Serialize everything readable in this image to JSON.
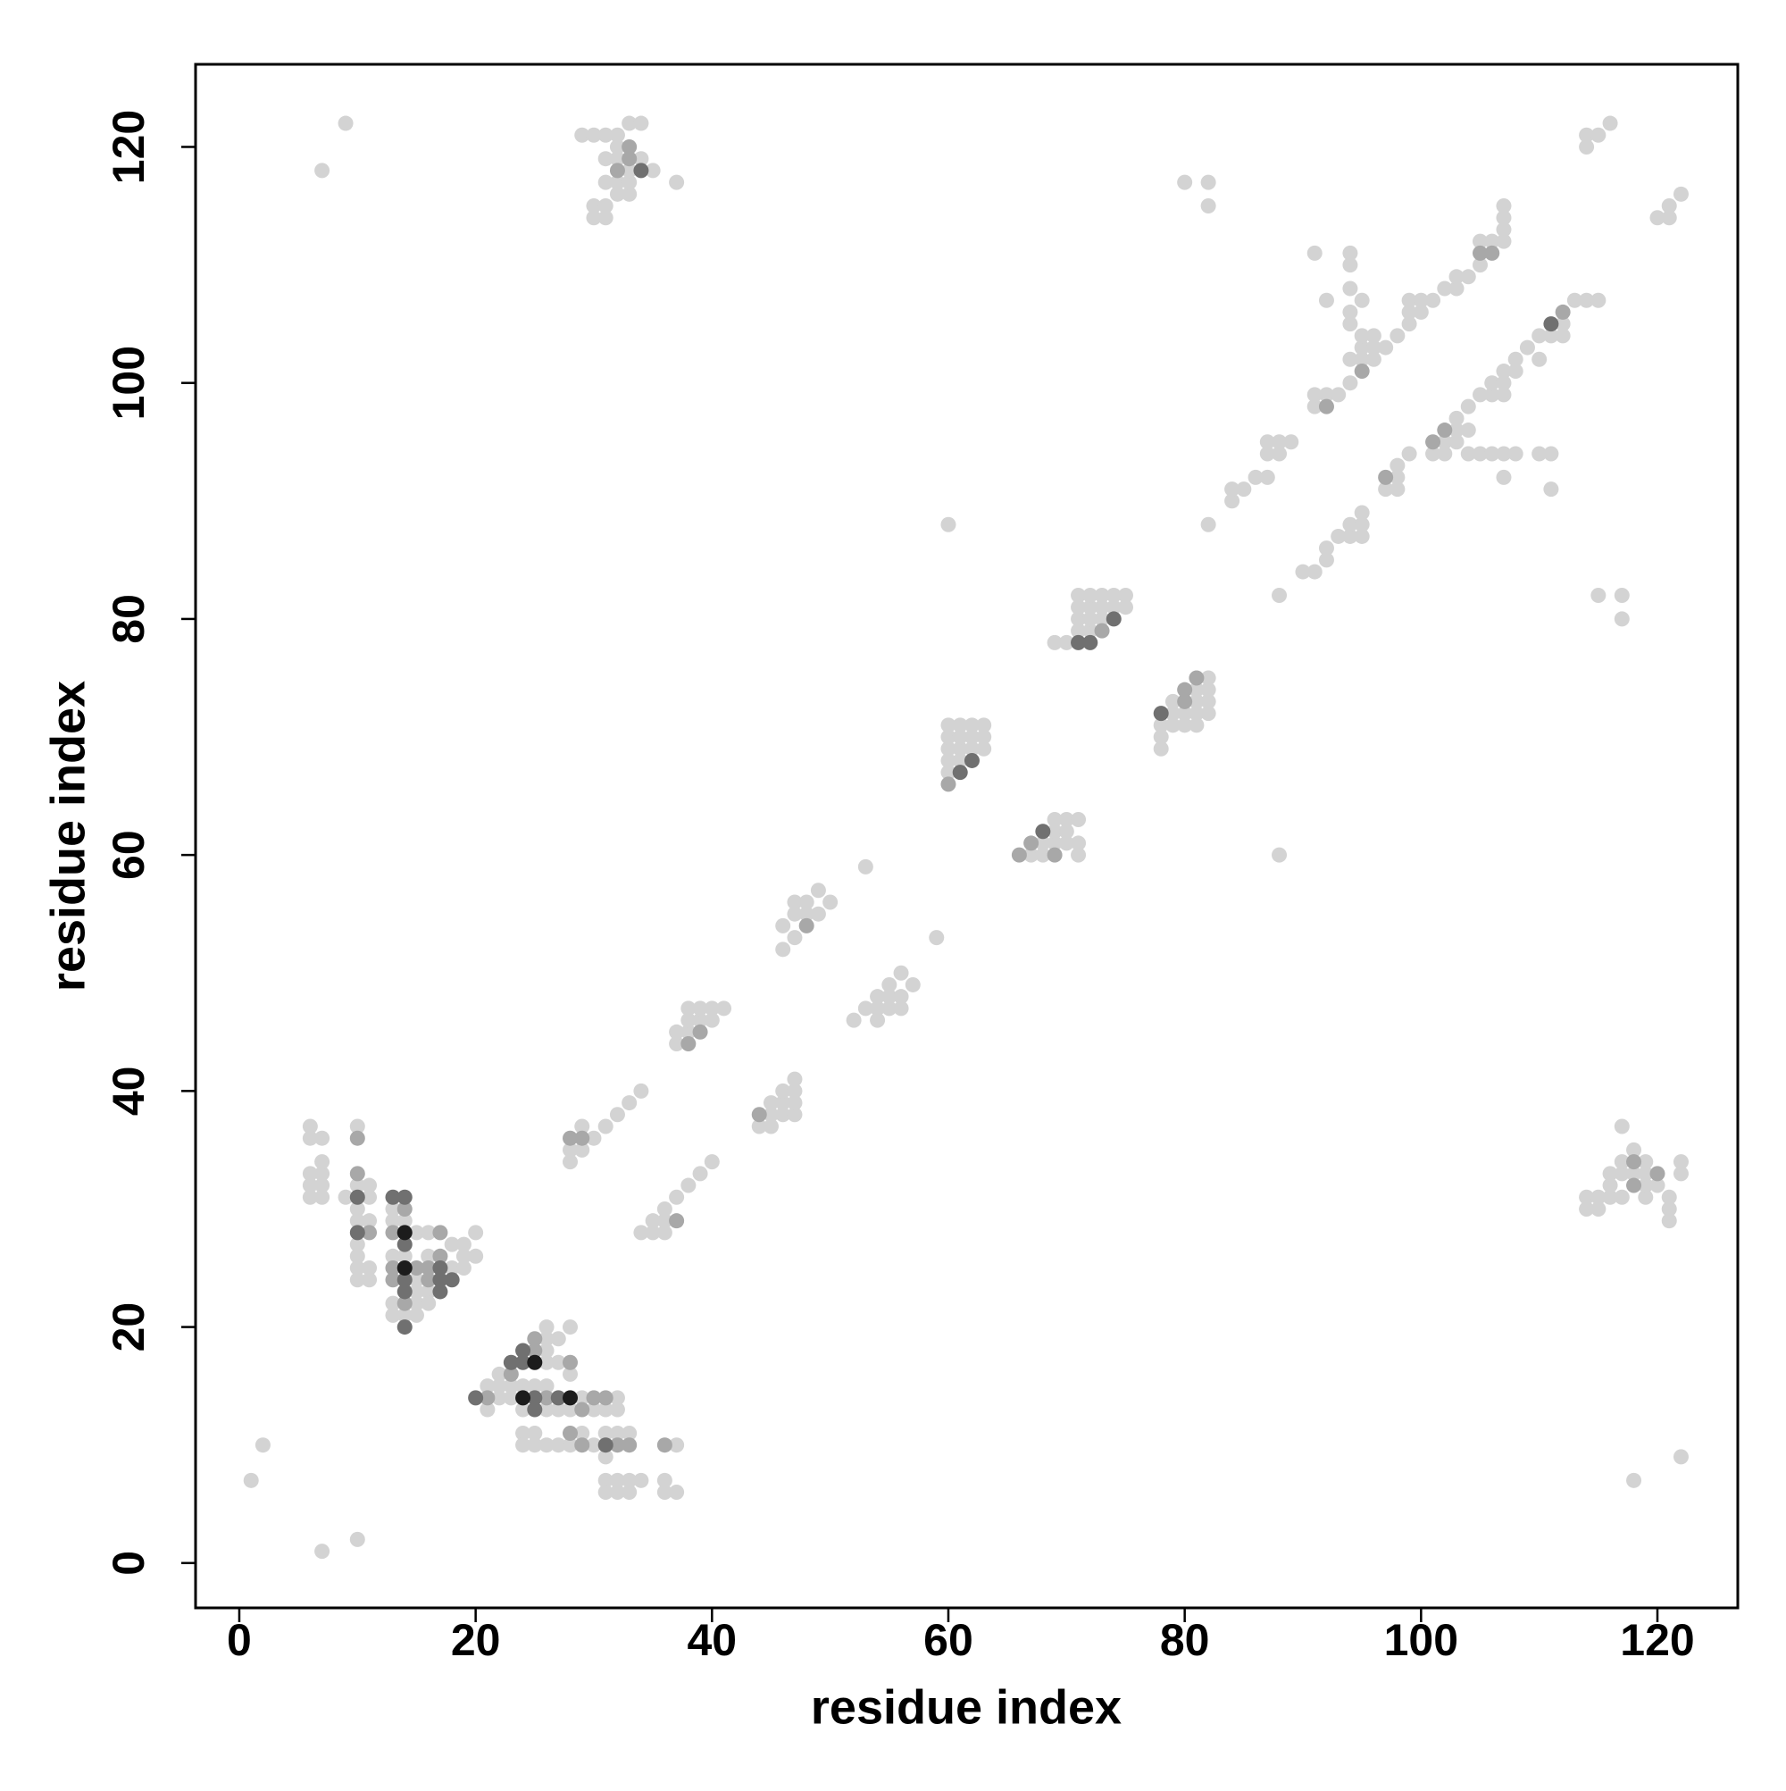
{
  "chart_data": {
    "type": "scatter",
    "xlabel": "residue index",
    "ylabel": "residue index",
    "xlim": [
      -3.7,
      126.8
    ],
    "ylim": [
      -3.8,
      127
    ],
    "xticks": [
      0,
      20,
      40,
      60,
      80,
      100,
      120
    ],
    "yticks": [
      0,
      20,
      40,
      60,
      80,
      100,
      120
    ],
    "series": [
      {
        "color": "#d3d3d3",
        "x": [
          1,
          2,
          7,
          10,
          7,
          9,
          60,
          88,
          82,
          80,
          82,
          82,
          88,
          115,
          117,
          117,
          118,
          122,
          120,
          121,
          121,
          122,
          114,
          114,
          115,
          116,
          6,
          6,
          7,
          6,
          7,
          6,
          7,
          6,
          7,
          7,
          9,
          10,
          10,
          11,
          11,
          10,
          10,
          11,
          10,
          10,
          10,
          11,
          10,
          11,
          13,
          13,
          14,
          15,
          16,
          13,
          14,
          16,
          18,
          19,
          20,
          18,
          19,
          20,
          19,
          15,
          15,
          16,
          13,
          15,
          16,
          14,
          15,
          13,
          21,
          21,
          22,
          22,
          26,
          26,
          27,
          26,
          26,
          27,
          28,
          28,
          22,
          23,
          23,
          24,
          25,
          26,
          29,
          32,
          24,
          26,
          27,
          28,
          30,
          31,
          32,
          24,
          25,
          24,
          25,
          26,
          27,
          28,
          29,
          30,
          31,
          32,
          33,
          31,
          31,
          32,
          33,
          34,
          31,
          32,
          33,
          37,
          36,
          36,
          37,
          28,
          28,
          29,
          29,
          30,
          31,
          32,
          33,
          34,
          37,
          37,
          38,
          38,
          38,
          39,
          39,
          40,
          40,
          41,
          46,
          46,
          47,
          47,
          47,
          48,
          48,
          49,
          49,
          50,
          53,
          34,
          35,
          35,
          36,
          36,
          36,
          37,
          38,
          39,
          40,
          44,
          45,
          45,
          45,
          46,
          46,
          46,
          47,
          47,
          47,
          47,
          52,
          53,
          54,
          54,
          54,
          55,
          55,
          55,
          56,
          56,
          56,
          57,
          59,
          60,
          60,
          60,
          60,
          60,
          61,
          61,
          61,
          61,
          62,
          62,
          62,
          63,
          63,
          63,
          67,
          68,
          68,
          69,
          69,
          69,
          70,
          70,
          70,
          71,
          71,
          71,
          69,
          70,
          71,
          71,
          71,
          71,
          72,
          72,
          72,
          72,
          73,
          73,
          73,
          74,
          74,
          75,
          75,
          78,
          78,
          78,
          79,
          79,
          79,
          80,
          80,
          81,
          81,
          81,
          81,
          82,
          82,
          82,
          82,
          84,
          84,
          85,
          86,
          87,
          87,
          87,
          88,
          88,
          89,
          91,
          91,
          92,
          93,
          94,
          94,
          94,
          94,
          94,
          94,
          94,
          92,
          91,
          95,
          95,
          95,
          95,
          96,
          96,
          96,
          97,
          98,
          99,
          99,
          99,
          100,
          100,
          101,
          102,
          103,
          103,
          104,
          105,
          105,
          106,
          107,
          107,
          107,
          107,
          90,
          91,
          92,
          92,
          93,
          94,
          94,
          95,
          95,
          95,
          97,
          98,
          98,
          98,
          99,
          101,
          102,
          102,
          103,
          103,
          103,
          104,
          104,
          104,
          105,
          105,
          106,
          106,
          106,
          107,
          107,
          107,
          107,
          107,
          108,
          108,
          108,
          109,
          110,
          110,
          111,
          111,
          110,
          111,
          112,
          112,
          113,
          114,
          115,
          29,
          30,
          31,
          30,
          30,
          31,
          31,
          31,
          31,
          32,
          32,
          32,
          32,
          33,
          33,
          33,
          33,
          34,
          34,
          35,
          32,
          37,
          114,
          114,
          115,
          115,
          116,
          116,
          116,
          117,
          117,
          117,
          117,
          118,
          118,
          119,
          119,
          119,
          119,
          120,
          121,
          121,
          121,
          122,
          122
        ],
        "values": [
          7,
          10,
          1,
          2,
          118,
          122,
          88,
          60,
          88,
          117,
          117,
          115,
          82,
          82,
          82,
          80,
          7,
          9,
          114,
          114,
          115,
          116,
          120,
          121,
          121,
          122,
          37,
          36,
          36,
          33,
          33,
          32,
          32,
          31,
          31,
          34,
          31,
          37,
          32,
          32,
          31,
          30,
          29,
          29,
          27,
          26,
          25,
          25,
          24,
          24,
          30,
          29,
          29,
          28,
          28,
          26,
          26,
          26,
          27,
          27,
          28,
          25,
          25,
          26,
          26,
          24,
          23,
          23,
          22,
          22,
          22,
          21,
          21,
          21,
          13,
          15,
          15,
          16,
          19,
          20,
          19,
          18,
          17,
          17,
          16,
          20,
          14,
          14,
          15,
          15,
          15,
          15,
          14,
          14,
          13,
          13,
          13,
          13,
          13,
          13,
          13,
          11,
          11,
          10,
          10,
          10,
          10,
          10,
          11,
          10,
          11,
          11,
          11,
          9,
          7,
          7,
          7,
          7,
          6,
          6,
          6,
          10,
          7,
          6,
          6,
          35,
          34,
          37,
          35,
          36,
          37,
          38,
          39,
          40,
          44,
          45,
          45,
          46,
          47,
          46,
          47,
          46,
          47,
          47,
          52,
          54,
          53,
          55,
          56,
          55,
          56,
          55,
          57,
          56,
          59,
          28,
          28,
          29,
          29,
          28,
          30,
          31,
          32,
          33,
          34,
          37,
          37,
          38,
          39,
          38,
          39,
          40,
          38,
          39,
          40,
          41,
          46,
          47,
          46,
          47,
          48,
          47,
          48,
          49,
          47,
          48,
          50,
          49,
          53,
          67,
          68,
          69,
          70,
          71,
          68,
          69,
          70,
          71,
          69,
          70,
          71,
          69,
          70,
          71,
          60,
          60,
          61,
          61,
          62,
          63,
          61,
          62,
          63,
          60,
          61,
          63,
          78,
          78,
          79,
          80,
          81,
          82,
          79,
          80,
          81,
          82,
          80,
          81,
          82,
          81,
          82,
          81,
          82,
          69,
          70,
          71,
          71,
          72,
          73,
          71,
          72,
          71,
          72,
          73,
          74,
          72,
          73,
          74,
          75,
          90,
          91,
          91,
          92,
          92,
          94,
          95,
          94,
          95,
          95,
          98,
          99,
          99,
          99,
          100,
          102,
          105,
          106,
          108,
          110,
          111,
          107,
          111,
          102,
          103,
          104,
          107,
          102,
          103,
          104,
          103,
          104,
          105,
          106,
          107,
          106,
          107,
          107,
          108,
          108,
          109,
          109,
          110,
          112,
          112,
          112,
          113,
          114,
          115,
          84,
          84,
          85,
          86,
          87,
          87,
          88,
          87,
          88,
          89,
          91,
          91,
          92,
          93,
          94,
          94,
          94,
          95,
          95,
          96,
          97,
          94,
          96,
          98,
          94,
          99,
          94,
          99,
          100,
          94,
          92,
          99,
          100,
          101,
          94,
          101,
          102,
          103,
          102,
          104,
          94,
          91,
          94,
          104,
          104,
          105,
          107,
          107,
          107,
          121,
          121,
          121,
          115,
          114,
          115,
          114,
          117,
          119,
          116,
          117,
          119,
          120,
          116,
          117,
          118,
          122,
          119,
          122,
          118,
          121,
          117,
          30,
          31,
          30,
          31,
          31,
          32,
          33,
          31,
          33,
          34,
          37,
          33,
          35,
          31,
          32,
          33,
          34,
          32,
          30,
          31,
          29,
          33,
          34
        ]
      },
      {
        "color": "#a8a8a8",
        "x": [
          10,
          10,
          11,
          14,
          13,
          17,
          17,
          13,
          15,
          16,
          13,
          16,
          14,
          21,
          23,
          25,
          25,
          28,
          26,
          30,
          31,
          29,
          28,
          29,
          32,
          33,
          36,
          28,
          29,
          38,
          39,
          48,
          37,
          44,
          60,
          66,
          67,
          69,
          73,
          80,
          80,
          81,
          92,
          95,
          105,
          106,
          97,
          101,
          102,
          112,
          32,
          33,
          33,
          118,
          118,
          120
        ],
        "values": [
          36,
          33,
          28,
          30,
          28,
          28,
          26,
          25,
          25,
          25,
          24,
          24,
          22,
          14,
          16,
          18,
          19,
          17,
          14,
          14,
          14,
          13,
          11,
          10,
          10,
          10,
          10,
          36,
          36,
          44,
          45,
          54,
          29,
          38,
          66,
          60,
          61,
          60,
          79,
          73,
          74,
          75,
          98,
          101,
          111,
          111,
          92,
          95,
          96,
          106,
          118,
          119,
          120,
          32,
          34,
          33
        ]
      },
      {
        "color": "#707070",
        "x": [
          14,
          17,
          14,
          17,
          18,
          14,
          17,
          14,
          13,
          14,
          10,
          10,
          20,
          23,
          24,
          24,
          25,
          27,
          25,
          31,
          61,
          62,
          68,
          71,
          72,
          74,
          78,
          34,
          111
        ],
        "values": [
          27,
          25,
          24,
          24,
          24,
          23,
          23,
          20,
          31,
          31,
          31,
          28,
          14,
          17,
          17,
          18,
          14,
          14,
          13,
          10,
          67,
          68,
          62,
          78,
          78,
          80,
          72,
          118,
          105
        ]
      },
      {
        "color": "#1c1c1c",
        "x": [
          14,
          14,
          25,
          24,
          28
        ],
        "values": [
          28,
          25,
          17,
          14,
          14
        ]
      }
    ]
  }
}
